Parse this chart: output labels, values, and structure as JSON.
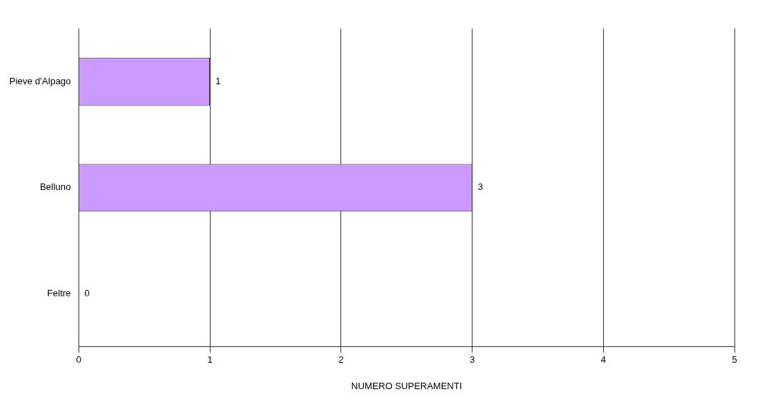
{
  "chart_data": {
    "type": "bar",
    "orientation": "horizontal",
    "xlabel": "NUMERO SUPERAMENTI",
    "categories": [
      "Pieve d'Alpago",
      "Belluno",
      "Feltre"
    ],
    "values": [
      1,
      3,
      0
    ],
    "color": "#cc99ff",
    "xlim": [
      0,
      5
    ],
    "xticks": [
      0,
      1,
      2,
      3,
      4,
      5
    ],
    "grid": "x",
    "data_labels": true
  }
}
